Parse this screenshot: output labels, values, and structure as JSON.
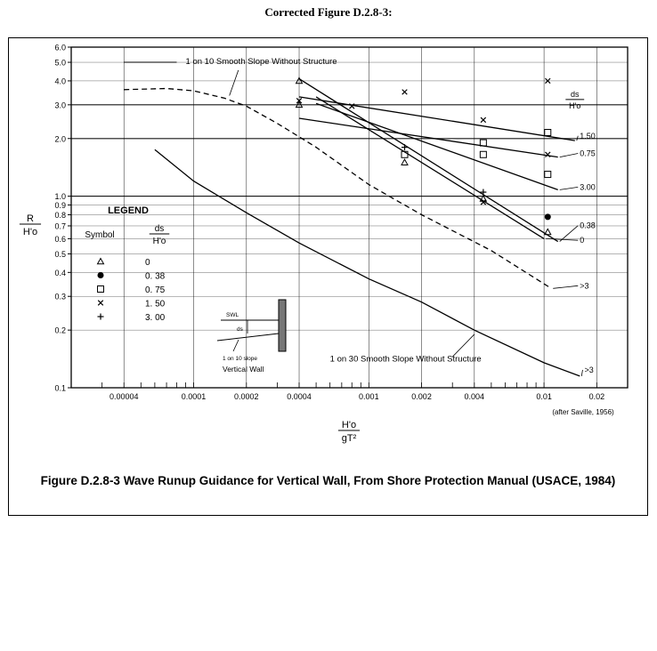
{
  "heading": "Corrected Figure D.2.8-3:",
  "caption": "Figure D.2.8-3 Wave Runup Guidance for Vertical Wall, From Shore Protection Manual (USACE, 1984)",
  "chart_data": {
    "type": "line",
    "title": "",
    "xscale": "log",
    "yscale": "log",
    "xlim": [
      2e-05,
      0.03
    ],
    "ylim": [
      0.1,
      6.0
    ],
    "xlabel": {
      "numerator": "H'o",
      "denominator": "gT²"
    },
    "ylabel": {
      "numerator": "R",
      "denominator": "H'o"
    },
    "source_note": "(after Saville, 1956)",
    "x_ticks": [
      {
        "v": 4e-05,
        "label": "0.00004"
      },
      {
        "v": 0.0001,
        "label": "0.0001"
      },
      {
        "v": 0.0002,
        "label": "0.0002"
      },
      {
        "v": 0.0004,
        "label": "0.0004"
      },
      {
        "v": 0.001,
        "label": "0.001"
      },
      {
        "v": 0.002,
        "label": "0.002"
      },
      {
        "v": 0.004,
        "label": "0.004"
      },
      {
        "v": 0.01,
        "label": "0.01"
      },
      {
        "v": 0.02,
        "label": "0.02"
      }
    ],
    "y_ticks": [
      {
        "v": 0.1,
        "label": "0.1"
      },
      {
        "v": 0.2,
        "label": "0.2"
      },
      {
        "v": 0.3,
        "label": "0.3"
      },
      {
        "v": 0.4,
        "label": "0.4"
      },
      {
        "v": 0.5,
        "label": "0.5"
      },
      {
        "v": 0.6,
        "label": "0.6"
      },
      {
        "v": 0.7,
        "label": "0.7"
      },
      {
        "v": 0.8,
        "label": "0.8"
      },
      {
        "v": 0.9,
        "label": "0.9"
      },
      {
        "v": 1.0,
        "label": "1.0"
      },
      {
        "v": 2.0,
        "label": "2.0"
      },
      {
        "v": 3.0,
        "label": "3.0"
      },
      {
        "v": 4.0,
        "label": "4.0"
      },
      {
        "v": 5.0,
        "label": "5.0"
      },
      {
        "v": 6.0,
        "label": "6.0"
      }
    ],
    "series": [
      {
        "name": "ds/H'o = 1.50",
        "label": "1.50",
        "style": "solid",
        "points": [
          [
            0.0004,
            3.3
          ],
          [
            0.015,
            1.95
          ]
        ],
        "label_at": [
          0.016,
          2.0
        ]
      },
      {
        "name": "ds/H'o = 0.75",
        "label": "0.75",
        "style": "solid",
        "points": [
          [
            0.0004,
            2.55
          ],
          [
            0.012,
            1.6
          ]
        ],
        "label_at": [
          0.016,
          1.62
        ]
      },
      {
        "name": "ds/H'o = 3.00",
        "label": "3.00",
        "style": "solid",
        "points": [
          [
            0.0005,
            3.05
          ],
          [
            0.012,
            1.08
          ]
        ],
        "label_at": [
          0.016,
          1.08
        ]
      },
      {
        "name": "ds/H'o = 0.38",
        "label": "0.38",
        "style": "solid",
        "points": [
          [
            0.0004,
            4.1
          ],
          [
            0.012,
            0.58
          ]
        ],
        "label_at": [
          0.016,
          0.68
        ]
      },
      {
        "name": "ds/H'o = 0",
        "label": "0",
        "style": "solid",
        "points": [
          [
            0.0005,
            3.3
          ],
          [
            0.01,
            0.6
          ]
        ],
        "label_at": [
          0.016,
          0.57
        ]
      },
      {
        "name": "1 on 10 Smooth Slope Without Structure",
        "style": "dashed",
        "points": [
          [
            4e-05,
            3.6
          ],
          [
            7e-05,
            3.65
          ],
          [
            0.0001,
            3.55
          ],
          [
            0.00015,
            3.25
          ],
          [
            0.0002,
            2.95
          ],
          [
            0.0003,
            2.4
          ],
          [
            0.0005,
            1.8
          ],
          [
            0.001,
            1.15
          ],
          [
            0.002,
            0.8
          ],
          [
            0.005,
            0.52
          ],
          [
            0.011,
            0.33
          ]
        ],
        "label_at": [
          0.016,
          0.33
        ],
        "end_label": ">3"
      },
      {
        "name": "1 on 30 Smooth Slope Without Structure",
        "style": "solid",
        "points": [
          [
            6e-05,
            1.75
          ],
          [
            0.0001,
            1.2
          ],
          [
            0.0002,
            0.82
          ],
          [
            0.0004,
            0.57
          ],
          [
            0.001,
            0.37
          ],
          [
            0.002,
            0.28
          ],
          [
            0.004,
            0.2
          ],
          [
            0.01,
            0.135
          ],
          [
            0.016,
            0.115
          ]
        ],
        "label_at": [
          0.017,
          0.12
        ],
        "end_label": ">3"
      }
    ],
    "points": [
      {
        "x": 0.0004,
        "y": 4.0,
        "marker": "triangle"
      },
      {
        "x": 0.0004,
        "y": 3.0,
        "marker": "triangle"
      },
      {
        "x": 0.0004,
        "y": 3.15,
        "marker": "x"
      },
      {
        "x": 0.0008,
        "y": 2.95,
        "marker": "x"
      },
      {
        "x": 0.0016,
        "y": 3.5,
        "marker": "x"
      },
      {
        "x": 0.0016,
        "y": 1.8,
        "marker": "plus"
      },
      {
        "x": 0.0016,
        "y": 1.65,
        "marker": "square"
      },
      {
        "x": 0.0016,
        "y": 1.5,
        "marker": "triangle"
      },
      {
        "x": 0.0045,
        "y": 2.5,
        "marker": "x"
      },
      {
        "x": 0.0045,
        "y": 1.9,
        "marker": "square"
      },
      {
        "x": 0.0045,
        "y": 1.65,
        "marker": "square"
      },
      {
        "x": 0.0045,
        "y": 1.05,
        "marker": "plus"
      },
      {
        "x": 0.0045,
        "y": 0.97,
        "marker": "triangle"
      },
      {
        "x": 0.0045,
        "y": 0.93,
        "marker": "x"
      },
      {
        "x": 0.0105,
        "y": 4.0,
        "marker": "x"
      },
      {
        "x": 0.0105,
        "y": 2.15,
        "marker": "square"
      },
      {
        "x": 0.0105,
        "y": 1.65,
        "marker": "x"
      },
      {
        "x": 0.0105,
        "y": 1.3,
        "marker": "square"
      },
      {
        "x": 0.0105,
        "y": 0.78,
        "marker": "circle"
      },
      {
        "x": 0.0105,
        "y": 0.65,
        "marker": "triangle"
      }
    ],
    "annotations": {
      "slope10": "1 on 10 Smooth Slope Without Structure",
      "slope30": "1 on 30 Smooth Slope Without Structure",
      "ds_header_num": "ds",
      "ds_header_den": "H'o",
      "inset_swl": "SWL",
      "inset_ds": "ds",
      "inset_slope": "1 on 10 slope",
      "inset_title": "Vertical Wall"
    },
    "legend": {
      "title": "LEGEND",
      "symbol_header": "Symbol",
      "value_header_num": "ds",
      "value_header_den": "H'o",
      "items": [
        {
          "marker": "triangle",
          "value": "0"
        },
        {
          "marker": "circle",
          "value": "0. 38"
        },
        {
          "marker": "square",
          "value": "0. 75"
        },
        {
          "marker": "x",
          "value": "1. 50"
        },
        {
          "marker": "plus",
          "value": "3. 00"
        }
      ]
    }
  }
}
